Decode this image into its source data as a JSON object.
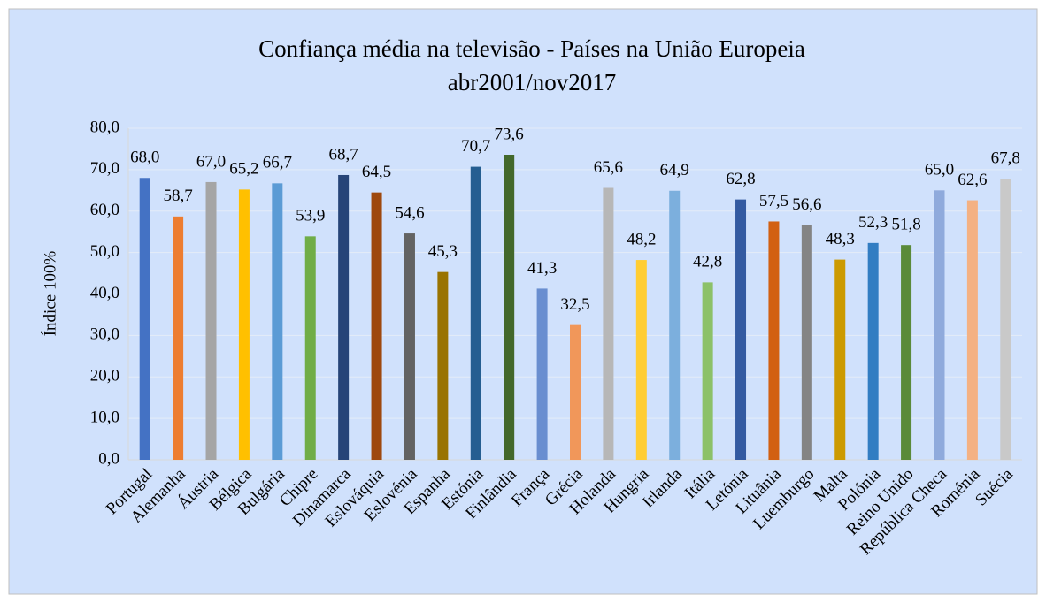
{
  "chart_data": {
    "type": "bar",
    "title": "Confiança média na televisão - Países na União Europeia",
    "subtitle": "abr2001/nov2017",
    "y_label": "Índice 100%",
    "categories": [
      "Portugal",
      "Alemanha",
      "Áustria",
      "Bélgica",
      "Bulgária",
      "Chipre",
      "Dinamarca",
      "Eslováquia",
      "Eslovénia",
      "Espanha",
      "Estónia",
      "Finlândia",
      "França",
      "Grécia",
      "Holanda",
      "Hungria",
      "Irlanda",
      "Itália",
      "Letónia",
      "Lituânia",
      "Luemburgo",
      "Malta",
      "Polónia",
      "Reino  Unido",
      "República  Checa",
      "Roménia",
      "Suécia"
    ],
    "values": [
      68.0,
      58.7,
      67.0,
      65.2,
      66.7,
      53.9,
      68.7,
      64.5,
      54.6,
      45.3,
      70.7,
      73.6,
      41.3,
      32.5,
      65.6,
      48.2,
      64.9,
      42.8,
      62.8,
      57.5,
      56.6,
      48.3,
      52.3,
      51.8,
      65.0,
      62.6,
      67.8
    ],
    "value_labels": [
      "68,0",
      "58,7",
      "67,0",
      "65,2",
      "66,7",
      "53,9",
      "68,7",
      "64,5",
      "54,6",
      "45,3",
      "70,7",
      "73,6",
      "41,3",
      "32,5",
      "65,6",
      "48,2",
      "64,9",
      "42,8",
      "62,8",
      "57,5",
      "56,6",
      "48,3",
      "52,3",
      "51,8",
      "65,0",
      "62,6",
      "67,8"
    ],
    "colors": [
      "#4472c4",
      "#ed7d31",
      "#a5a5a5",
      "#ffc000",
      "#5b9bd5",
      "#70ad47",
      "#264478",
      "#9e480e",
      "#636363",
      "#997300",
      "#255e91",
      "#43682b",
      "#698ed0",
      "#f1975a",
      "#b7b7b7",
      "#ffcd33",
      "#7cafdd",
      "#8cc168",
      "#335aa1",
      "#d26012",
      "#848484",
      "#cc9a00",
      "#327dc2",
      "#5a8a39",
      "#8faadc",
      "#f4b183",
      "#c9c9c9"
    ],
    "ylim": [
      0,
      80
    ],
    "yticks": [
      {
        "value": 0,
        "label": "0,0"
      },
      {
        "value": 10,
        "label": "10,0"
      },
      {
        "value": 20,
        "label": "20,0"
      },
      {
        "value": 30,
        "label": "30,0"
      },
      {
        "value": 40,
        "label": "40,0"
      },
      {
        "value": 50,
        "label": "50,0"
      },
      {
        "value": 60,
        "label": "60,0"
      },
      {
        "value": 70,
        "label": "70,0"
      },
      {
        "value": 80,
        "label": "80,0"
      }
    ],
    "grid": true
  }
}
